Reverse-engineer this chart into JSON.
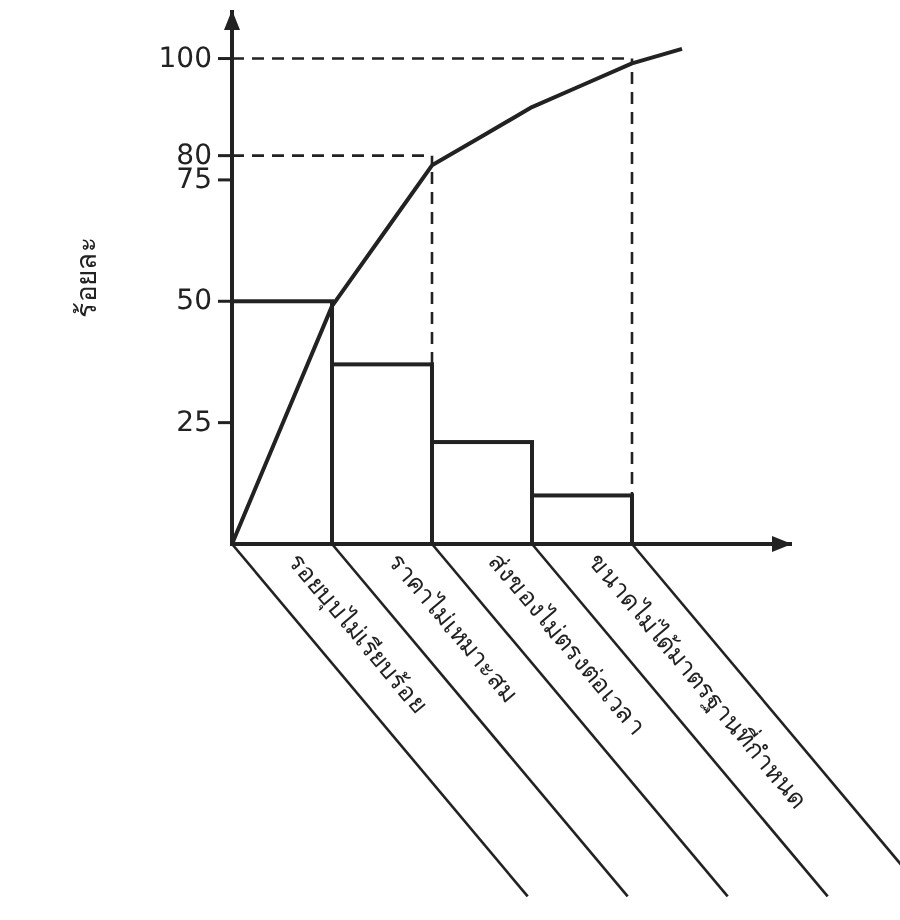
{
  "chart_data": {
    "type": "bar",
    "ylabel": "ร้อยละ",
    "categories": [
      null,
      "รอยบุบไม่เรียบร้อย",
      null,
      "ราคาไม่เหมาะสม",
      null,
      "ส่งของไม่ตรงต่อเวลา",
      null,
      "ขนาดไม่ได้มาตรฐานที่กำหนด",
      null,
      null
    ],
    "series": [
      {
        "color": "#ffffff",
        "values": [
          null,
          50,
          null,
          37,
          null,
          21,
          null,
          10,
          null,
          null
        ]
      },
      {
        "type": "line",
        "color": "#222222",
        "values": [
          0,
          24.5,
          49,
          63.5,
          78,
          84,
          90,
          94.5,
          99,
          102
        ]
      }
    ],
    "ylim": [
      0,
      110
    ],
    "yticks": [
      25,
      50,
      75,
      80,
      100
    ],
    "ref_lines": [
      {
        "axis": "y",
        "value": 80,
        "line_style": "dashed"
      },
      {
        "axis": "y",
        "value": 100,
        "line_style": "dashed"
      }
    ]
  }
}
